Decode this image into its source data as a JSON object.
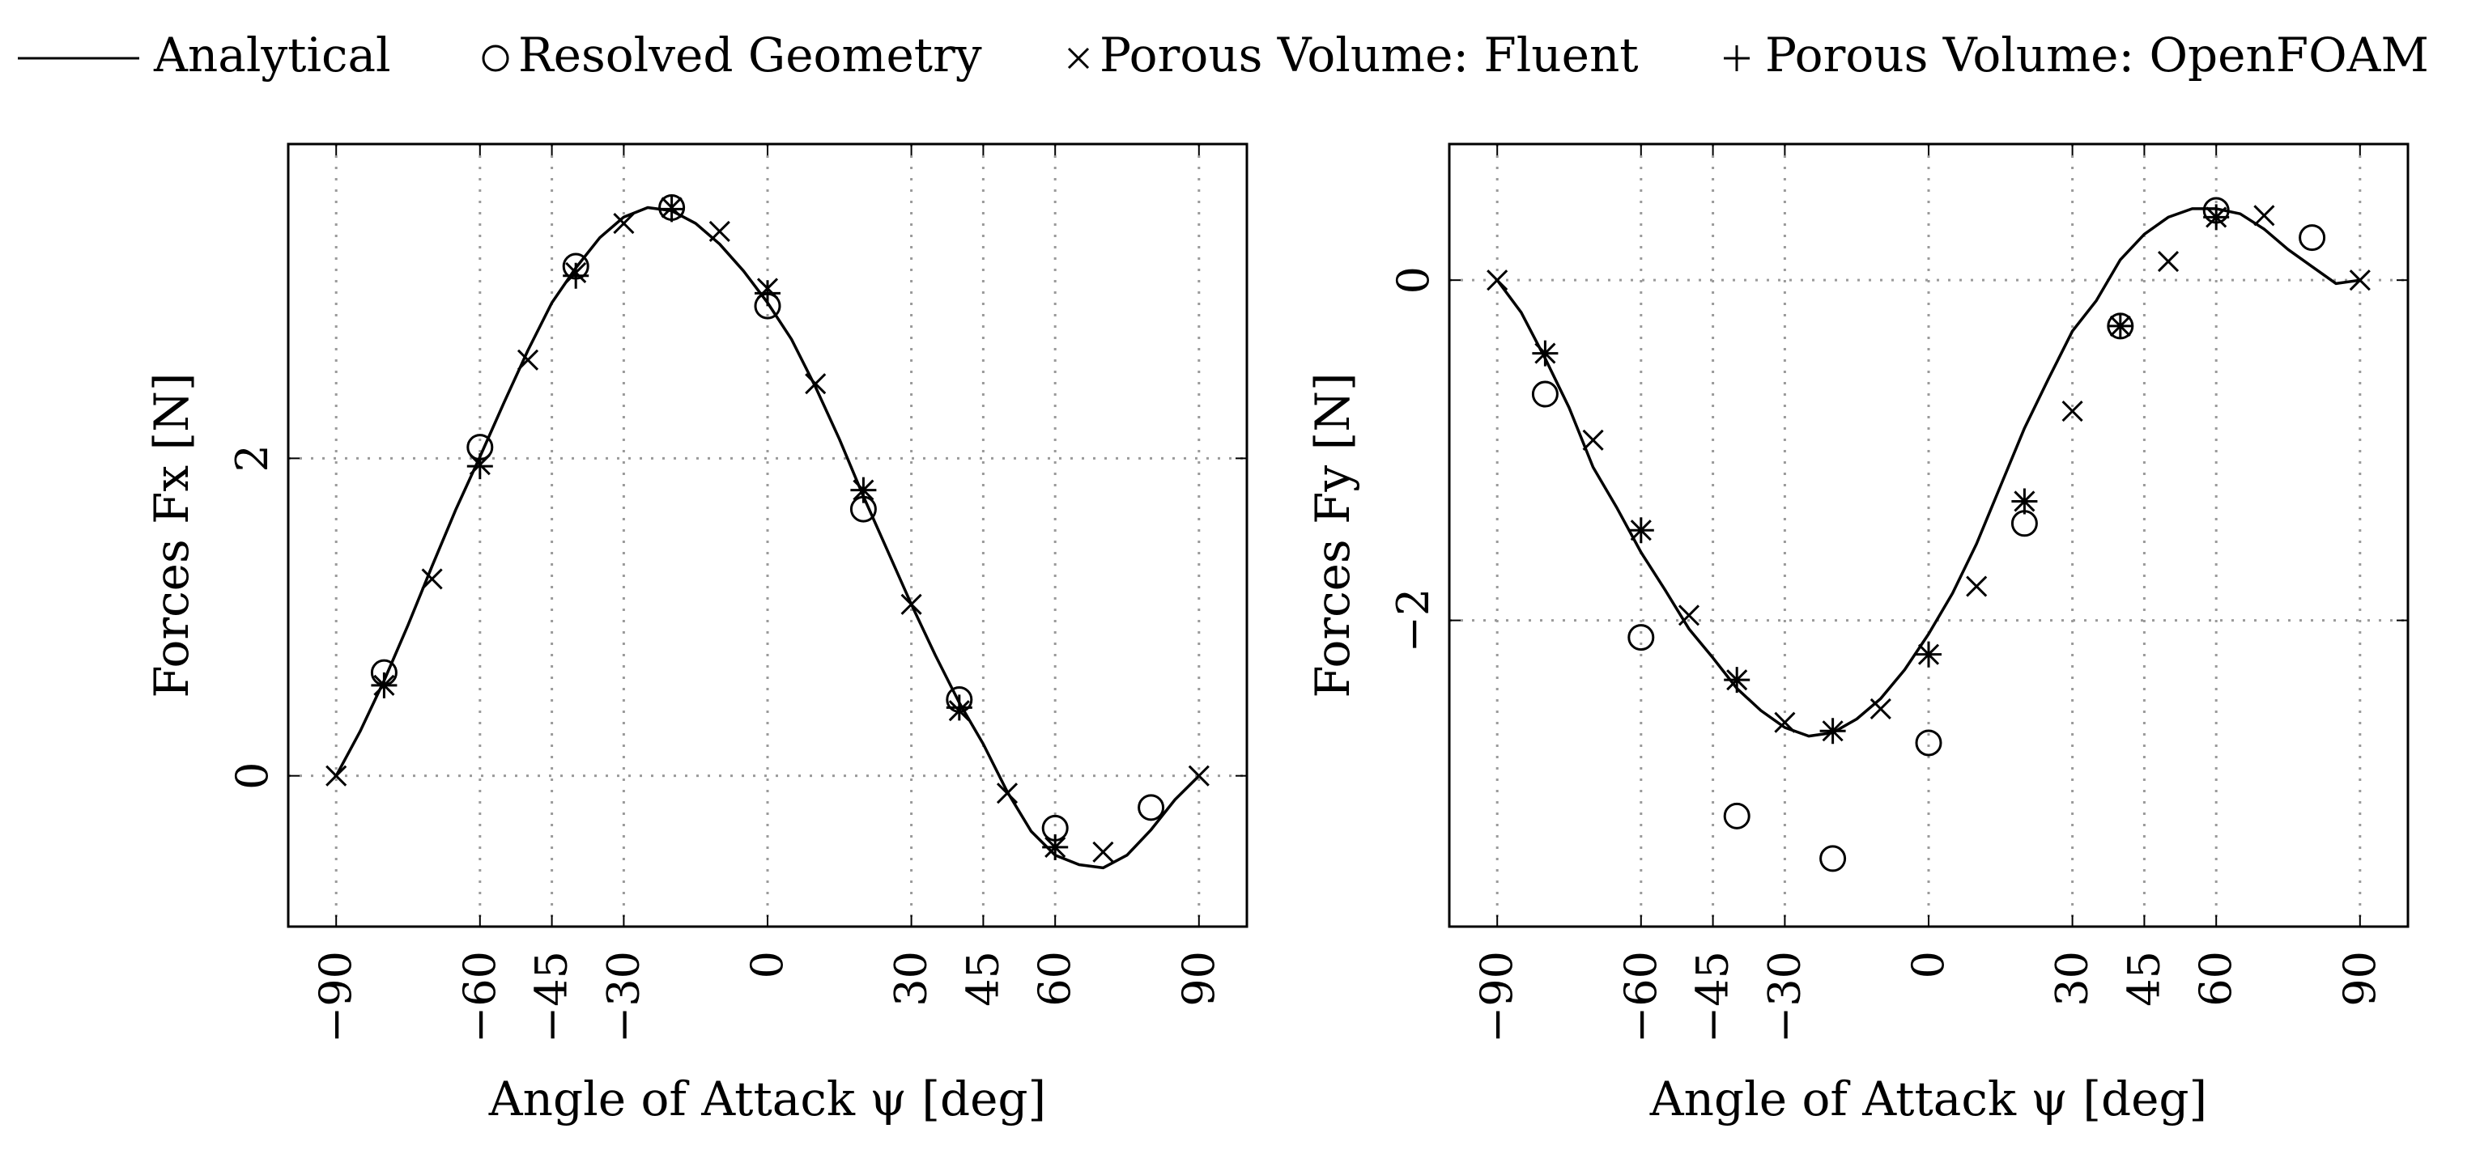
{
  "legend": {
    "items": [
      {
        "marker": "line",
        "label": "Analytical"
      },
      {
        "marker": "circle",
        "label": "Resolved Geometry"
      },
      {
        "marker": "cross",
        "label": "Porous Volume: Fluent"
      },
      {
        "marker": "plus",
        "label": "Porous Volume: OpenFOAM"
      }
    ]
  },
  "colors": {
    "ink": "#000000",
    "grid": "#9a9a9a",
    "background": "#ffffff"
  },
  "chart_data": [
    {
      "type": "line",
      "xlabel": "Angle of Attack ψ [deg]",
      "ylabel": "Forces Fx [N]",
      "xlim": [
        -100,
        100
      ],
      "ylim": [
        -0.95,
        3.98
      ],
      "xticks": [
        -90,
        -60,
        -45,
        -30,
        0,
        30,
        45,
        60,
        90
      ],
      "xtick_labels": [
        "−90",
        "−60",
        "−45",
        "−30",
        "0",
        "30",
        "45",
        "60",
        "90"
      ],
      "yticks": [
        0,
        2
      ],
      "ytick_labels": [
        "0",
        "2"
      ],
      "grid": true,
      "series": [
        {
          "name": "Analytical",
          "marker": "line",
          "x": [
            -90,
            -85,
            -80,
            -75,
            -70,
            -65,
            -60,
            -55,
            -50,
            -45,
            -40,
            -35,
            -30,
            -25,
            -20,
            -15,
            -10,
            -5,
            0,
            5,
            10,
            15,
            20,
            25,
            30,
            35,
            40,
            45,
            50,
            55,
            60,
            65,
            70,
            75,
            80,
            85,
            90
          ],
          "y": [
            0,
            0.28,
            0.6,
            0.95,
            1.32,
            1.68,
            2.01,
            2.35,
            2.68,
            2.98,
            3.2,
            3.39,
            3.52,
            3.58,
            3.56,
            3.48,
            3.35,
            3.18,
            2.98,
            2.75,
            2.45,
            2.12,
            1.76,
            1.42,
            1.08,
            0.76,
            0.46,
            0.2,
            -0.1,
            -0.35,
            -0.5,
            -0.56,
            -0.58,
            -0.5,
            -0.34,
            -0.15,
            0
          ]
        },
        {
          "name": "Resolved Geometry",
          "marker": "circle",
          "x": [
            -80,
            -60,
            -40,
            -20,
            0,
            20,
            40,
            60,
            80
          ],
          "y": [
            0.65,
            2.07,
            3.21,
            3.58,
            2.96,
            1.68,
            0.48,
            -0.33,
            -0.2
          ]
        },
        {
          "name": "Porous Volume: Fluent",
          "marker": "cross",
          "x": [
            -90,
            -80,
            -70,
            -60,
            -50,
            -40,
            -30,
            -20,
            -10,
            0,
            10,
            20,
            30,
            40,
            50,
            60,
            70,
            90
          ],
          "y": [
            0,
            0.57,
            1.24,
            1.96,
            2.62,
            3.17,
            3.48,
            3.58,
            3.43,
            3.07,
            2.47,
            1.8,
            1.08,
            0.41,
            -0.11,
            -0.45,
            -0.48,
            0
          ]
        },
        {
          "name": "Porous Volume: OpenFOAM",
          "marker": "plus",
          "x": [
            -80,
            -60,
            -40,
            -20,
            0,
            20,
            40,
            60
          ],
          "y": [
            0.57,
            1.95,
            3.15,
            3.57,
            3.04,
            1.8,
            0.43,
            -0.45
          ]
        }
      ]
    },
    {
      "type": "line",
      "xlabel": "Angle of Attack ψ [deg]",
      "ylabel": "Forces Fy [N]",
      "xlim": [
        -100,
        100
      ],
      "ylim": [
        -3.8,
        0.8
      ],
      "xticks": [
        -90,
        -60,
        -45,
        -30,
        0,
        30,
        45,
        60,
        90
      ],
      "xtick_labels": [
        "−90",
        "−60",
        "−45",
        "−30",
        "0",
        "30",
        "45",
        "60",
        "90"
      ],
      "yticks": [
        0,
        -2
      ],
      "ytick_labels": [
        "0",
        "−2"
      ],
      "grid": true,
      "series": [
        {
          "name": "Analytical",
          "marker": "line",
          "x": [
            -90,
            -85,
            -80,
            -75,
            -70,
            -65,
            -60,
            -55,
            -50,
            -45,
            -40,
            -35,
            -30,
            -25,
            -20,
            -15,
            -10,
            -5,
            0,
            5,
            10,
            15,
            20,
            25,
            30,
            35,
            40,
            45,
            50,
            55,
            60,
            65,
            70,
            75,
            80,
            85,
            90
          ],
          "y": [
            0,
            -0.19,
            -0.46,
            -0.75,
            -1.1,
            -1.34,
            -1.6,
            -1.82,
            -2.05,
            -2.22,
            -2.4,
            -2.53,
            -2.63,
            -2.68,
            -2.66,
            -2.58,
            -2.46,
            -2.29,
            -2.08,
            -1.84,
            -1.55,
            -1.21,
            -0.87,
            -0.58,
            -0.3,
            -0.12,
            0.12,
            0.27,
            0.37,
            0.42,
            0.42,
            0.39,
            0.3,
            0.18,
            0.08,
            -0.02,
            0
          ]
        },
        {
          "name": "Resolved Geometry",
          "marker": "circle",
          "x": [
            -80,
            -60,
            -40,
            -20,
            0,
            20,
            40,
            60,
            80
          ],
          "y": [
            -0.67,
            -2.1,
            -3.15,
            -3.4,
            -2.72,
            -1.43,
            -0.27,
            0.41,
            0.25
          ]
        },
        {
          "name": "Porous Volume: Fluent",
          "marker": "cross",
          "x": [
            -90,
            -80,
            -70,
            -60,
            -50,
            -40,
            -30,
            -20,
            -10,
            0,
            10,
            20,
            30,
            40,
            50,
            60,
            70,
            90
          ],
          "y": [
            0,
            -0.43,
            -0.94,
            -1.47,
            -1.97,
            -2.35,
            -2.6,
            -2.65,
            -2.52,
            -2.2,
            -1.8,
            -1.3,
            -0.77,
            -0.27,
            0.11,
            0.37,
            0.38,
            0
          ]
        },
        {
          "name": "Porous Volume: OpenFOAM",
          "marker": "plus",
          "x": [
            -80,
            -60,
            -40,
            -20,
            0,
            20,
            40,
            60
          ],
          "y": [
            -0.43,
            -1.47,
            -2.35,
            -2.65,
            -2.2,
            -1.3,
            -0.27,
            0.37
          ]
        }
      ]
    }
  ]
}
